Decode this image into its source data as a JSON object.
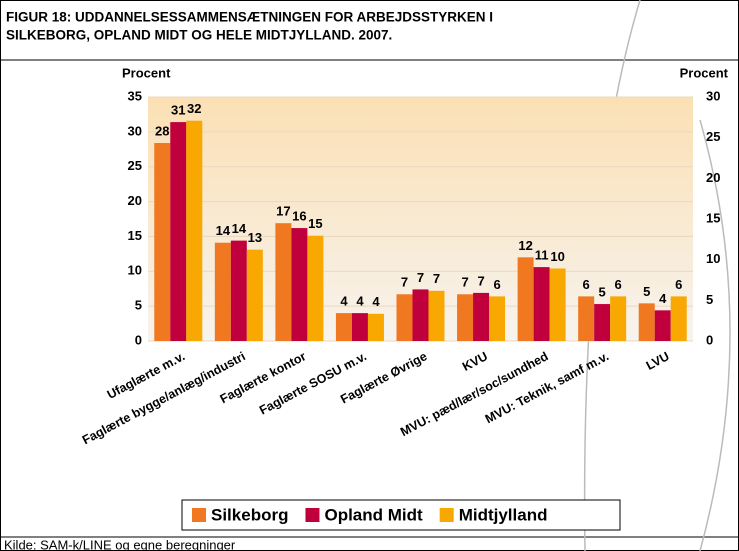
{
  "chart_data": {
    "type": "bar",
    "title": [
      "FIGUR 18: UDDANNELSESSAMMENSÆTNINGEN FOR ARBEJDSSTYRKEN I",
      "SILKEBORG, OPLAND MIDT OG HELE MIDTJYLLAND. 2007."
    ],
    "y_label": "Procent",
    "y2_label": "Procent",
    "source": "Kilde: SAM-k/LINE og egne beregninger",
    "categories": [
      "Ufaglærte m.v.",
      "Faglærte bygge/anlæg/industri",
      "Faglærte kontor",
      "Faglærte SOSU m.v.",
      "Faglærte Øvrige",
      "KVU",
      "MVU: pæd/lær/soc/sundhed",
      "MVU: Teknik, samf m.v.",
      "LVU"
    ],
    "series": [
      {
        "name": "Silkeborg",
        "color": "#f07820",
        "values": [
          28.4,
          14.1,
          16.9,
          4.0,
          6.7,
          6.7,
          12.0,
          6.4,
          5.4
        ],
        "value_labels": [
          "28",
          "14",
          "17",
          "4",
          "7",
          "7",
          "12",
          "6",
          "5"
        ]
      },
      {
        "name": "Opland Midt",
        "color": "#c0003c",
        "values": [
          31.4,
          14.4,
          16.2,
          4.0,
          7.4,
          6.9,
          10.6,
          5.3,
          4.4
        ],
        "value_labels": [
          "31",
          "14",
          "16",
          "4",
          "7",
          "7",
          "11",
          "5",
          "4"
        ]
      },
      {
        "name": "Midtjylland",
        "color": "#f8a800",
        "values": [
          31.6,
          13.1,
          15.1,
          3.9,
          7.2,
          6.4,
          10.4,
          6.4,
          6.4
        ],
        "value_labels": [
          "32",
          "13",
          "15",
          "4",
          "7",
          "6",
          "10",
          "6",
          "6"
        ]
      }
    ],
    "ylim": [
      0,
      35
    ],
    "yticks": [
      0,
      5,
      10,
      15,
      20,
      25,
      30,
      35
    ],
    "y2lim": [
      0,
      30
    ],
    "y2ticks": [
      0,
      5,
      10,
      15,
      20,
      25,
      30
    ],
    "grid": true
  }
}
